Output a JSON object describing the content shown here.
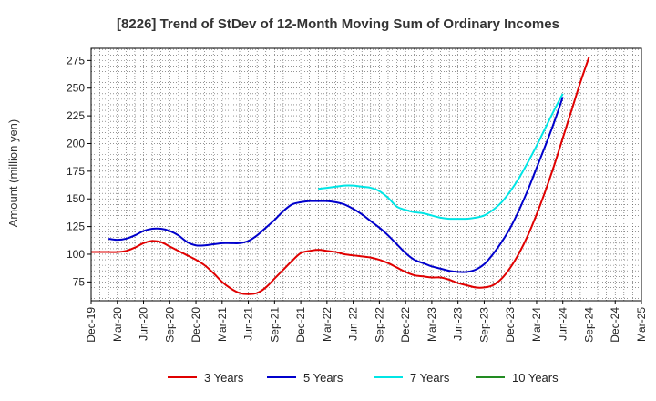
{
  "chart_data": {
    "type": "line",
    "title": "[8226]  Trend of StDev of 12-Month Moving Sum of Ordinary Incomes",
    "xlabel": "",
    "ylabel": "Amount (million yen)",
    "ylim": [
      58,
      286
    ],
    "y_ticks": [
      75,
      100,
      125,
      150,
      175,
      200,
      225,
      250,
      275
    ],
    "x_start": "Dec-19",
    "x_ticks": [
      "Dec-19",
      "Mar-20",
      "Jun-20",
      "Sep-20",
      "Dec-20",
      "Mar-21",
      "Jun-21",
      "Sep-21",
      "Dec-21",
      "Mar-22",
      "Jun-22",
      "Sep-22",
      "Dec-22",
      "Mar-23",
      "Jun-23",
      "Sep-23",
      "Dec-23",
      "Mar-24",
      "Jun-24",
      "Sep-24",
      "Dec-24",
      "Mar-25"
    ],
    "grid": true,
    "legend_position": "bottom",
    "series": [
      {
        "name": "3 Years",
        "color": "#e00000",
        "start_index": 0,
        "values": [
          102,
          102,
          102,
          102,
          103,
          106,
          110,
          112,
          111,
          107,
          103,
          99,
          95,
          90,
          83,
          75,
          69,
          65,
          64,
          65,
          70,
          78,
          86,
          94,
          101,
          103,
          104,
          103,
          102,
          100,
          99,
          98,
          97,
          95,
          92,
          88,
          84,
          81,
          80,
          79,
          79,
          77,
          74,
          72,
          70,
          70,
          72,
          78,
          88,
          101,
          117,
          136,
          157,
          180,
          205,
          230,
          255,
          278
        ]
      },
      {
        "name": "5 Years",
        "color": "#0000cc",
        "start_index": 2,
        "values": [
          114,
          113,
          114,
          117,
          121,
          123,
          123,
          121,
          117,
          111,
          108,
          108,
          109,
          110,
          110,
          110,
          112,
          117,
          124,
          131,
          139,
          145,
          147,
          148,
          148,
          148,
          147,
          145,
          141,
          136,
          130,
          124,
          117,
          109,
          101,
          95,
          92,
          89,
          87,
          85,
          84,
          84,
          86,
          91,
          100,
          111,
          124,
          140,
          158,
          178,
          198,
          219,
          242
        ]
      },
      {
        "name": "7 Years",
        "color": "#00e5e5",
        "start_index": 26,
        "values": [
          159,
          160,
          161,
          162,
          162,
          161,
          160,
          157,
          151,
          143,
          140,
          138,
          137,
          135,
          133,
          132,
          132,
          132,
          133,
          135,
          140,
          147,
          157,
          169,
          183,
          198,
          214,
          230,
          245
        ]
      },
      {
        "name": "10 Years",
        "color": "#228b22",
        "start_index": 0,
        "values": []
      }
    ]
  }
}
